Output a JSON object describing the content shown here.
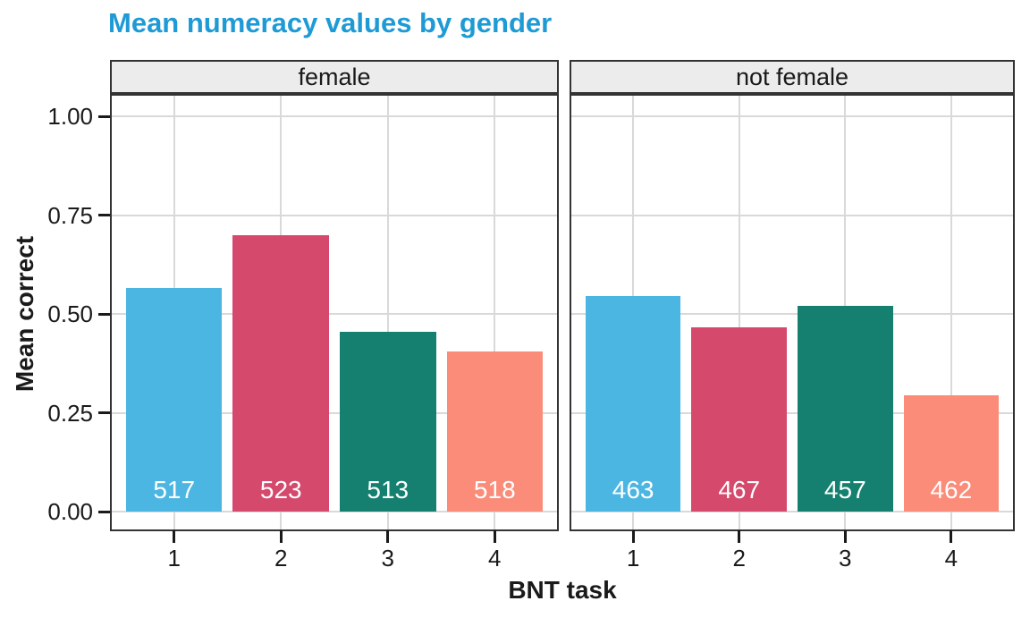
{
  "title": "Mean numeracy values by gender",
  "colors": {
    "title": "#1E9AD5",
    "bar_palette": [
      "#4CB6E3",
      "#D5496D",
      "#15806F",
      "#FA8C79"
    ],
    "panel_border": "#333333",
    "strip_fill": "#ECECEC",
    "gridline": "#D9D9D9",
    "bar_label_text": "#FFFFFF"
  },
  "chart_data": {
    "type": "bar",
    "title": "Mean numeracy values by gender",
    "xlabel": "BNT task",
    "ylabel": "Mean correct",
    "categories": [
      "1",
      "2",
      "3",
      "4"
    ],
    "facets": [
      {
        "label": "female",
        "values": [
          0.565,
          0.7,
          0.455,
          0.405
        ],
        "bar_labels": [
          "517",
          "523",
          "513",
          "518"
        ]
      },
      {
        "label": "not female",
        "values": [
          0.545,
          0.465,
          0.52,
          0.295
        ],
        "bar_labels": [
          "463",
          "467",
          "457",
          "462"
        ]
      }
    ],
    "series_colors": [
      "#4CB6E3",
      "#D5496D",
      "#15806F",
      "#FA8C79"
    ],
    "y_ticks": [
      0.0,
      0.25,
      0.5,
      0.75,
      1.0
    ],
    "y_tick_labels": [
      "0.00",
      "0.25",
      "0.50",
      "0.75",
      "1.00"
    ],
    "ylim": [
      -0.05,
      1.055
    ],
    "grid": "major-only",
    "legend": "none",
    "layout_hint": "two facet panels side by side with top strips"
  }
}
